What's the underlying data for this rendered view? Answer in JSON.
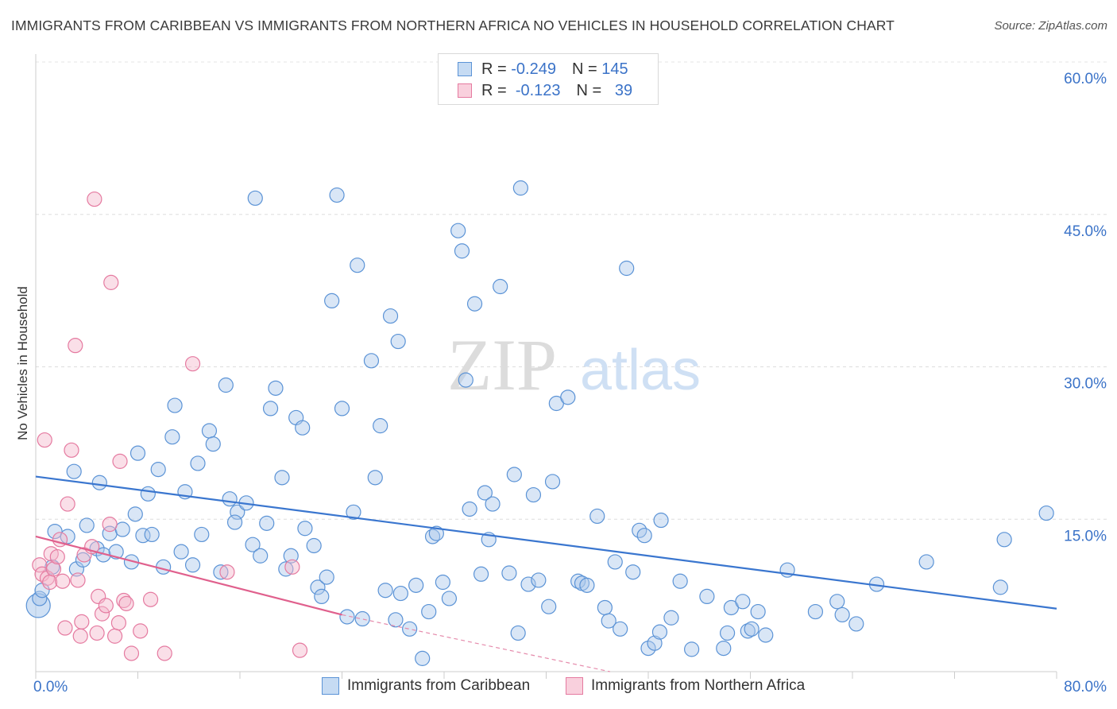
{
  "title": "IMMIGRANTS FROM CARIBBEAN VS IMMIGRANTS FROM NORTHERN AFRICA NO VEHICLES IN HOUSEHOLD CORRELATION CHART",
  "source": "Source: ZipAtlas.com",
  "watermark": {
    "zip": "ZIP",
    "atlas": "atlas"
  },
  "legend": {
    "r_label": "R =",
    "n_label": "N =",
    "series1": {
      "r": "-0.249",
      "n": "145"
    },
    "series2": {
      "r": "-0.123",
      "n": "39"
    }
  },
  "colors": {
    "blue": "#5b93d6",
    "blue_fill": "#aac8ec",
    "pink": "#e57aa0",
    "pink_fill": "#f4b8cc",
    "axis_text": "#3b73c8"
  },
  "chart_data": {
    "type": "scatter",
    "title": "IMMIGRANTS FROM CARIBBEAN VS IMMIGRANTS FROM NORTHERN AFRICA NO VEHICLES IN HOUSEHOLD CORRELATION CHART",
    "xlabel": "",
    "ylabel": "No Vehicles in Household",
    "xlim": [
      0,
      80
    ],
    "ylim": [
      0,
      60
    ],
    "x_tick_labels": [
      "0.0%",
      "80.0%"
    ],
    "y_ticks": [
      15,
      30,
      45,
      60
    ],
    "y_tick_labels": [
      "15.0%",
      "30.0%",
      "45.0%",
      "60.0%"
    ],
    "series": [
      {
        "name": "Immigrants from Caribbean",
        "color": "#5b93d6",
        "trend": {
          "x": [
            0,
            80
          ],
          "y": [
            19.2,
            6.2
          ]
        },
        "points": [
          [
            0.3,
            7.2
          ],
          [
            0.5,
            8
          ],
          [
            1.3,
            10.3
          ],
          [
            1.5,
            13.8
          ],
          [
            2.5,
            13.3
          ],
          [
            3,
            19.7
          ],
          [
            3.2,
            10.1
          ],
          [
            3.7,
            11
          ],
          [
            4,
            14.4
          ],
          [
            4.8,
            12.1
          ],
          [
            5,
            18.6
          ],
          [
            5.3,
            11.5
          ],
          [
            5.8,
            13.6
          ],
          [
            6.3,
            11.8
          ],
          [
            6.8,
            14
          ],
          [
            7.5,
            10.8
          ],
          [
            7.8,
            15.5
          ],
          [
            8,
            21.5
          ],
          [
            8.4,
            13.4
          ],
          [
            8.8,
            17.5
          ],
          [
            9.1,
            13.5
          ],
          [
            9.6,
            19.9
          ],
          [
            10,
            10.3
          ],
          [
            10.7,
            23.1
          ],
          [
            10.9,
            26.2
          ],
          [
            11.4,
            11.8
          ],
          [
            11.7,
            17.7
          ],
          [
            12.3,
            10.5
          ],
          [
            12.7,
            20.5
          ],
          [
            13,
            13.5
          ],
          [
            13.6,
            23.7
          ],
          [
            13.9,
            22.4
          ],
          [
            14.5,
            9.8
          ],
          [
            14.9,
            28.2
          ],
          [
            15.2,
            17
          ],
          [
            15.8,
            15.7
          ],
          [
            15.6,
            14.7
          ],
          [
            16.5,
            16.6
          ],
          [
            17,
            12.5
          ],
          [
            17.2,
            46.6
          ],
          [
            17.6,
            11.4
          ],
          [
            18.1,
            14.6
          ],
          [
            18.4,
            25.9
          ],
          [
            18.8,
            27.9
          ],
          [
            19.3,
            19.1
          ],
          [
            19.6,
            10.1
          ],
          [
            20,
            11.4
          ],
          [
            20.4,
            25
          ],
          [
            20.9,
            24
          ],
          [
            21.1,
            14.1
          ],
          [
            21.8,
            12.4
          ],
          [
            22.1,
            8.3
          ],
          [
            22.4,
            7.4
          ],
          [
            22.8,
            9.3
          ],
          [
            23.2,
            36.5
          ],
          [
            23.6,
            46.9
          ],
          [
            24,
            25.9
          ],
          [
            24.4,
            5.4
          ],
          [
            24.9,
            15.7
          ],
          [
            25.2,
            40
          ],
          [
            25.6,
            5.2
          ],
          [
            26.3,
            30.6
          ],
          [
            26.6,
            19.1
          ],
          [
            27,
            24.2
          ],
          [
            27.4,
            8
          ],
          [
            27.8,
            35
          ],
          [
            28.2,
            5.1
          ],
          [
            28.4,
            32.5
          ],
          [
            28.6,
            7.7
          ],
          [
            29.3,
            4.2
          ],
          [
            29.8,
            8.5
          ],
          [
            30.3,
            1.3
          ],
          [
            30.8,
            5.9
          ],
          [
            31.1,
            13.3
          ],
          [
            31.4,
            13.6
          ],
          [
            31.9,
            8.8
          ],
          [
            32.4,
            7.2
          ],
          [
            33.1,
            43.4
          ],
          [
            33.4,
            41.4
          ],
          [
            33.7,
            28.7
          ],
          [
            34,
            16
          ],
          [
            34.4,
            36.2
          ],
          [
            34.9,
            9.6
          ],
          [
            35.2,
            17.6
          ],
          [
            35.5,
            13
          ],
          [
            35.8,
            16.5
          ],
          [
            36.4,
            37.9
          ],
          [
            37.1,
            9.7
          ],
          [
            37.5,
            19.4
          ],
          [
            37.8,
            3.8
          ],
          [
            38,
            47.6
          ],
          [
            38.6,
            8.6
          ],
          [
            39,
            17.4
          ],
          [
            39.4,
            9
          ],
          [
            40.2,
            6.4
          ],
          [
            40.5,
            18.7
          ],
          [
            40.8,
            26.4
          ],
          [
            41.7,
            27
          ],
          [
            42.5,
            8.9
          ],
          [
            42.8,
            8.7
          ],
          [
            43.2,
            8.5
          ],
          [
            44,
            15.3
          ],
          [
            44.6,
            6.3
          ],
          [
            44.9,
            5
          ],
          [
            45.4,
            10.8
          ],
          [
            45.8,
            4.2
          ],
          [
            46.3,
            39.7
          ],
          [
            46.8,
            9.8
          ],
          [
            47.3,
            13.9
          ],
          [
            47.7,
            13.4
          ],
          [
            48,
            2.3
          ],
          [
            48.5,
            2.8
          ],
          [
            48.9,
            3.9
          ],
          [
            49,
            14.9
          ],
          [
            49.8,
            5.3
          ],
          [
            50.5,
            8.9
          ],
          [
            51.4,
            2.2
          ],
          [
            52.6,
            7.4
          ],
          [
            53.9,
            2.3
          ],
          [
            54.2,
            3.8
          ],
          [
            54.5,
            6.3
          ],
          [
            55.4,
            6.9
          ],
          [
            55.8,
            4
          ],
          [
            56.1,
            4.2
          ],
          [
            56.6,
            5.9
          ],
          [
            57.2,
            3.6
          ],
          [
            58.9,
            10
          ],
          [
            61.1,
            5.9
          ],
          [
            62.8,
            6.9
          ],
          [
            63.2,
            5.6
          ],
          [
            64.3,
            4.7
          ],
          [
            65.9,
            8.6
          ],
          [
            69.8,
            10.8
          ],
          [
            75.6,
            8.3
          ],
          [
            75.9,
            13
          ],
          [
            79.2,
            15.6
          ]
        ]
      },
      {
        "name": "Immigrants from Northern Africa",
        "color": "#e57aa0",
        "trend": {
          "x": [
            0,
            24
          ],
          "y": [
            13.3,
            5.6
          ]
        },
        "trend_dashed": {
          "x": [
            24,
            45
          ],
          "y": [
            5.6,
            0
          ]
        },
        "points": [
          [
            0.3,
            10.5
          ],
          [
            0.5,
            9.6
          ],
          [
            0.7,
            22.8
          ],
          [
            0.9,
            9.2
          ],
          [
            1.1,
            8.8
          ],
          [
            1.2,
            11.6
          ],
          [
            1.4,
            10.1
          ],
          [
            1.7,
            11.3
          ],
          [
            1.9,
            13
          ],
          [
            2.1,
            8.9
          ],
          [
            2.3,
            4.3
          ],
          [
            2.5,
            16.5
          ],
          [
            2.8,
            21.8
          ],
          [
            3.1,
            32.1
          ],
          [
            3.3,
            9
          ],
          [
            3.5,
            3.5
          ],
          [
            3.6,
            4.9
          ],
          [
            3.8,
            11.5
          ],
          [
            4.4,
            12.3
          ],
          [
            4.6,
            46.5
          ],
          [
            4.8,
            3.8
          ],
          [
            4.9,
            7.4
          ],
          [
            5.2,
            5.7
          ],
          [
            5.5,
            6.5
          ],
          [
            5.8,
            14.5
          ],
          [
            5.9,
            38.3
          ],
          [
            6.2,
            3.5
          ],
          [
            6.5,
            4.8
          ],
          [
            6.6,
            20.7
          ],
          [
            6.9,
            7
          ],
          [
            7.1,
            6.7
          ],
          [
            7.5,
            1.8
          ],
          [
            8.2,
            4
          ],
          [
            9,
            7.1
          ],
          [
            10.1,
            1.8
          ],
          [
            12.3,
            30.3
          ],
          [
            15,
            9.8
          ],
          [
            20.1,
            10.3
          ],
          [
            20.7,
            2.1
          ]
        ]
      }
    ]
  },
  "bottom_legend": {
    "series1": "Immigrants from Caribbean",
    "series2": "Immigrants from Northern Africa"
  }
}
